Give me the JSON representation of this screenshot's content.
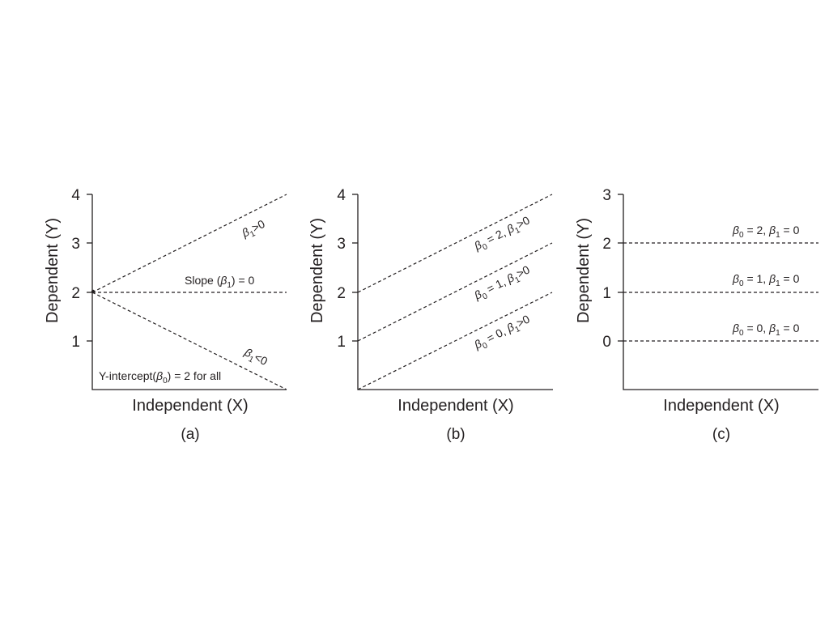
{
  "chart_data": [
    {
      "panel": "(a)",
      "type": "line",
      "xlabel": "Independent (X)",
      "ylabel": "Dependent (Y)",
      "x_ticks_shown": false,
      "xlim": [
        0,
        4
      ],
      "ylim": [
        0,
        4
      ],
      "yticks": [
        1,
        2,
        3,
        4
      ],
      "grid": false,
      "line_style": "dashed",
      "series": [
        {
          "x": [
            0,
            4
          ],
          "y": [
            2,
            4
          ],
          "label": "β1>0",
          "label_parts": {
            "b": "β",
            "sub": "1",
            "rest": ">0"
          }
        },
        {
          "x": [
            0,
            4
          ],
          "y": [
            2,
            2
          ],
          "label": "Slope (β1) = 0",
          "label_parts": {
            "pre": "Slope (",
            "b": "β",
            "sub": "1",
            "rest": ") = 0"
          }
        },
        {
          "x": [
            0,
            4
          ],
          "y": [
            2,
            0
          ],
          "label": "β1<0",
          "label_parts": {
            "b": "β",
            "sub": "1",
            "rest": "<0"
          }
        }
      ],
      "annotation": {
        "text": "Y-intercept(β0) = 2 for all",
        "parts": {
          "pre": "Y-intercept(",
          "b": "β",
          "sub": "0",
          "rest": ") = 2 for all"
        }
      }
    },
    {
      "panel": "(b)",
      "type": "line",
      "xlabel": "Independent (X)",
      "ylabel": "Dependent (Y)",
      "x_ticks_shown": false,
      "xlim": [
        0,
        4
      ],
      "ylim": [
        0,
        4
      ],
      "yticks": [
        1,
        2,
        3,
        4
      ],
      "grid": false,
      "line_style": "dashed",
      "series": [
        {
          "x": [
            0,
            4
          ],
          "y": [
            2,
            4
          ],
          "label": "β0 = 2, β1>0",
          "label_parts": {
            "b0": "β",
            "sub0": "0",
            "mid": " = 2, ",
            "b1": "β",
            "sub1": "1",
            "rest": ">0"
          }
        },
        {
          "x": [
            0,
            4
          ],
          "y": [
            1,
            3
          ],
          "label": "β0 = 1, β1>0",
          "label_parts": {
            "b0": "β",
            "sub0": "0",
            "mid": " = 1, ",
            "b1": "β",
            "sub1": "1",
            "rest": ">0"
          }
        },
        {
          "x": [
            0,
            4
          ],
          "y": [
            0,
            2
          ],
          "label": "β0 = 0, β1>0",
          "label_parts": {
            "b0": "β",
            "sub0": "0",
            "mid": " = 0, ",
            "b1": "β",
            "sub1": "1",
            "rest": ">0"
          }
        }
      ]
    },
    {
      "panel": "(c)",
      "type": "line",
      "xlabel": "Independent (X)",
      "ylabel": "Dependent (Y)",
      "x_ticks_shown": false,
      "xlim": [
        0,
        4
      ],
      "ylim": [
        -1,
        3
      ],
      "yticks": [
        0,
        1,
        2,
        3
      ],
      "grid": false,
      "line_style": "dashed",
      "series": [
        {
          "x": [
            0,
            4
          ],
          "y": [
            2,
            2
          ],
          "label": "β0 = 2, β1 = 0",
          "label_parts": {
            "b0": "β",
            "sub0": "0",
            "mid": " = 2, ",
            "b1": "β",
            "sub1": "1",
            "rest": " = 0"
          }
        },
        {
          "x": [
            0,
            4
          ],
          "y": [
            1,
            1
          ],
          "label": "β0 = 1, β1 = 0",
          "label_parts": {
            "b0": "β",
            "sub0": "0",
            "mid": " = 1, ",
            "b1": "β",
            "sub1": "1",
            "rest": " = 0"
          }
        },
        {
          "x": [
            0,
            4
          ],
          "y": [
            0,
            0
          ],
          "label": "β0 = 0, β1 = 0",
          "label_parts": {
            "b0": "β",
            "sub0": "0",
            "mid": " = 0, ",
            "b1": "β",
            "sub1": "1",
            "rest": " = 0"
          }
        }
      ]
    }
  ]
}
